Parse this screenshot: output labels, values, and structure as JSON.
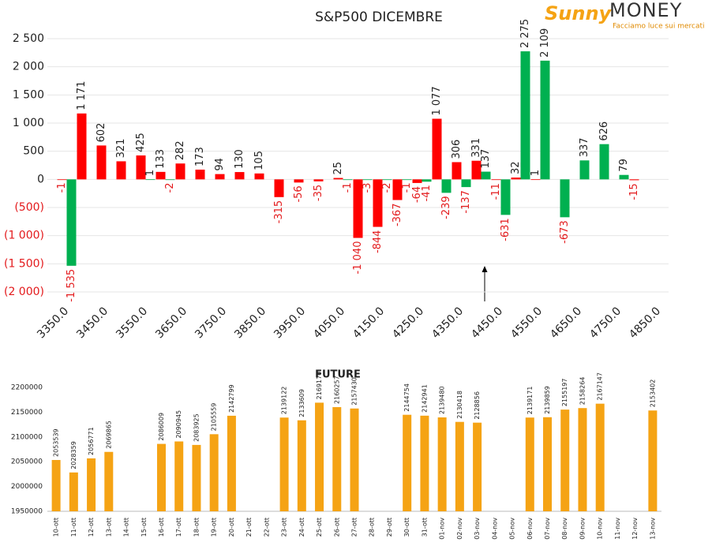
{
  "logo": {
    "brand": "Sunny",
    "name": "MONEY",
    "tagline": "Facciamo luce sui mercati"
  },
  "chart_data": [
    {
      "type": "bar",
      "title": "S&P500 DICEMBRE",
      "negative_color": "#e31a1c",
      "grid": true,
      "categories": [
        "3350.0",
        null,
        "3450.0",
        null,
        "3550.0",
        null,
        "3650.0",
        null,
        "3750.0",
        null,
        "3850.0",
        null,
        "3950.0",
        null,
        "4050.0",
        null,
        "4150.0",
        null,
        "4250.0",
        null,
        "4350.0",
        null,
        "4450.0",
        null,
        "4550.0",
        null,
        "4650.0",
        null,
        "4750.0",
        null,
        "4850.0"
      ],
      "series": [
        {
          "color": "#ff0000",
          "values": [
            -1,
            1171,
            602,
            321,
            425,
            133,
            282,
            173,
            94,
            130,
            105,
            -315,
            -56,
            -35,
            25,
            -1040,
            -844,
            -367,
            -64,
            1077,
            306,
            331,
            -11,
            32,
            1,
            null,
            null,
            null,
            null,
            -15,
            null
          ],
          "value_labels": [
            "-1",
            "1 171",
            "602",
            "321",
            "425",
            "133",
            "282",
            "173",
            "94",
            "130",
            "105",
            "-315",
            "-56",
            "-35",
            "25",
            "-1 040",
            "-844",
            "-367",
            "-64",
            "1 077",
            "306",
            "331",
            "-11",
            "32",
            "1",
            null,
            null,
            null,
            null,
            "-15",
            null
          ]
        },
        {
          "color": "#00b050",
          "values": [
            -1535,
            null,
            null,
            null,
            1,
            -2,
            null,
            null,
            null,
            null,
            null,
            null,
            null,
            null,
            -1,
            -3,
            -2,
            -1,
            -41,
            -239,
            -137,
            137,
            -631,
            2275,
            2109,
            -673,
            337,
            626,
            79,
            null,
            null
          ],
          "value_labels": [
            "-1 535",
            null,
            null,
            null,
            "1",
            "-2",
            null,
            null,
            null,
            null,
            null,
            null,
            null,
            null,
            "-1",
            "-3",
            "-2",
            "-1",
            "-41",
            "-239",
            "-137",
            "137",
            "-631",
            "2 275",
            "2 109",
            "-673",
            "337",
            "626",
            "79",
            null,
            null
          ]
        }
      ],
      "ylim": [
        -2000,
        2500
      ],
      "yticks": [
        {
          "value": -2000,
          "label": "(2 000)"
        },
        {
          "value": -1500,
          "label": "(1 500)"
        },
        {
          "value": -1000,
          "label": "(1 000)"
        },
        {
          "value": -500,
          "label": "(500)"
        },
        0,
        500,
        {
          "value": 1000,
          "label": "1 000"
        },
        {
          "value": 1500,
          "label": "1 500"
        },
        {
          "value": 2000,
          "label": "2 000"
        },
        {
          "value": 2500,
          "label": "2 500"
        }
      ]
    },
    {
      "type": "bar",
      "title": "FUTURE",
      "color": "#f5a314",
      "grid": false,
      "categories": [
        "10-ott",
        "11-ott",
        "12-ott",
        "13-ott",
        "14-ott",
        "15-ott",
        "16-ott",
        "17-ott",
        "18-ott",
        "19-ott",
        "20-ott",
        "21-ott",
        "22-ott",
        "23-ott",
        "24-ott",
        "25-ott",
        "26-ott",
        "27-ott",
        "28-ott",
        "29-ott",
        "30-ott",
        "31-ott",
        "01-nov",
        "02-nov",
        "03-nov",
        "04-nov",
        "05-nov",
        "06-nov",
        "07-nov",
        "08-nov",
        "09-nov",
        "10-nov",
        "11-nov",
        "12-nov",
        "13-nov"
      ],
      "values": [
        2053539,
        2028359,
        2056771,
        2069865,
        null,
        null,
        2086009,
        2090945,
        2083925,
        2105559,
        2142799,
        null,
        null,
        2139122,
        2133609,
        2169170,
        2160257,
        2157430,
        null,
        null,
        2144754,
        2142941,
        2139480,
        2130418,
        2128856,
        null,
        null,
        2139171,
        2139859,
        2155197,
        2158264,
        2167147,
        null,
        null,
        2153402
      ],
      "ylim": [
        1950000,
        2200000
      ],
      "yticks": [
        1950000,
        2000000,
        2050000,
        2100000,
        2150000,
        2200000
      ]
    }
  ]
}
